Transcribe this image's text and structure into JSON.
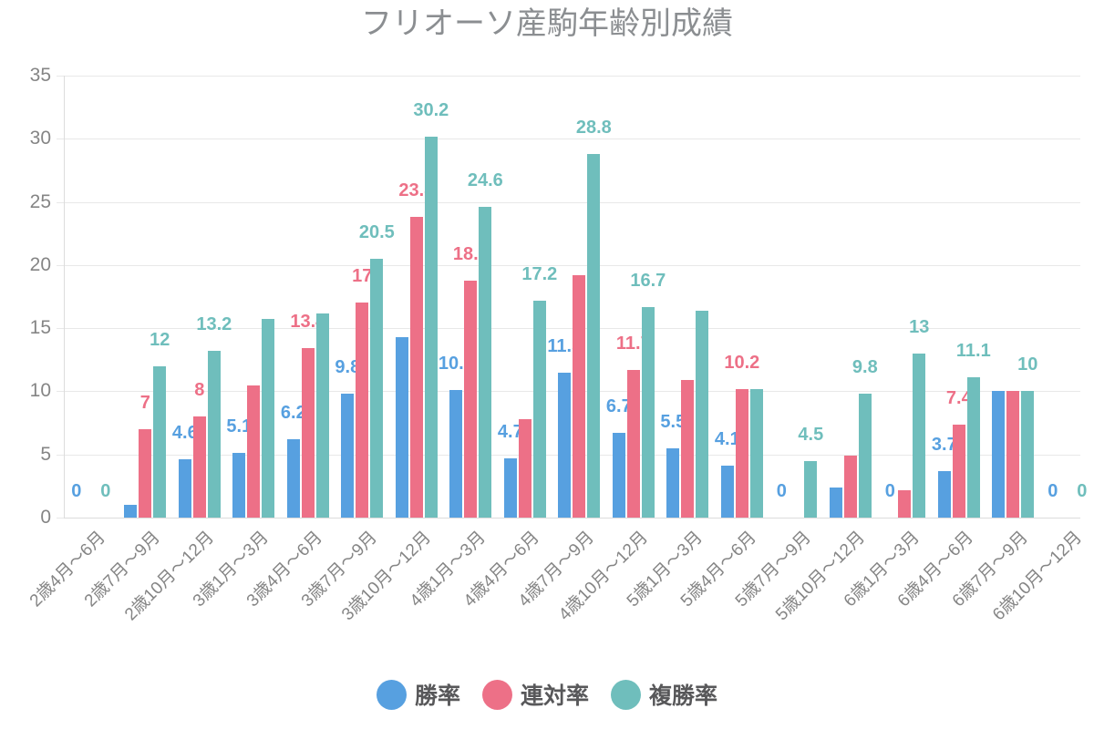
{
  "title": "フリオーソ産駒年齢別成績",
  "chart_data": {
    "type": "bar",
    "title": "フリオーソ産駒年齢別成績",
    "categories": [
      "2歳4月〜6月",
      "2歳7月〜9月",
      "2歳10月〜12月",
      "3歳1月〜3月",
      "3歳4月〜6月",
      "3歳7月〜9月",
      "3歳10月〜12月",
      "4歳1月〜3月",
      "4歳4月〜6月",
      "4歳7月〜9月",
      "4歳10月〜12月",
      "5歳1月〜3月",
      "5歳4月〜6月",
      "5歳7月〜9月",
      "5歳10月〜12月",
      "6歳1月〜3月",
      "6歳4月〜6月",
      "6歳7月〜9月",
      "6歳10月〜12月"
    ],
    "series": [
      {
        "name": "勝率",
        "color": "#57A0E0",
        "values": [
          0,
          1,
          4.6,
          5.1,
          6.2,
          9.8,
          14.3,
          10.1,
          4.7,
          11.5,
          6.7,
          5.5,
          4.1,
          0,
          2.4,
          0,
          3.7,
          10,
          0
        ],
        "label_shown": [
          true,
          false,
          true,
          true,
          true,
          true,
          false,
          true,
          true,
          true,
          true,
          true,
          true,
          true,
          false,
          true,
          true,
          false,
          true
        ]
      },
      {
        "name": "連対率",
        "color": "#ED7087",
        "values": [
          0,
          7,
          8,
          10.5,
          13.4,
          17,
          23.8,
          18.8,
          7.8,
          19.2,
          11.7,
          10.9,
          10.2,
          0,
          4.9,
          2.2,
          7.4,
          10,
          0
        ],
        "label_shown": [
          false,
          true,
          true,
          false,
          true,
          true,
          true,
          true,
          false,
          false,
          true,
          false,
          true,
          false,
          false,
          false,
          true,
          false,
          false
        ]
      },
      {
        "name": "複勝率",
        "color": "#6FBEBC",
        "values": [
          0,
          12,
          13.2,
          15.7,
          16.2,
          20.5,
          30.2,
          24.6,
          17.2,
          28.8,
          16.7,
          16.4,
          10.2,
          4.5,
          9.8,
          13,
          11.1,
          10,
          0
        ],
        "label_shown": [
          true,
          true,
          true,
          false,
          false,
          true,
          true,
          true,
          true,
          true,
          true,
          false,
          false,
          true,
          true,
          true,
          true,
          true,
          true
        ]
      }
    ],
    "ylim": [
      0,
      35
    ],
    "yticks": [
      0,
      5,
      10,
      15,
      20,
      25,
      30,
      35
    ],
    "grid": true,
    "legend_position": "bottom",
    "style": {
      "title_color": "#8b8e91",
      "axis_text_color": "#858585",
      "legend_text_color": "#58585a",
      "grid_color": "#e8e8e8",
      "axis_line_color": "#dcdcdc"
    }
  }
}
